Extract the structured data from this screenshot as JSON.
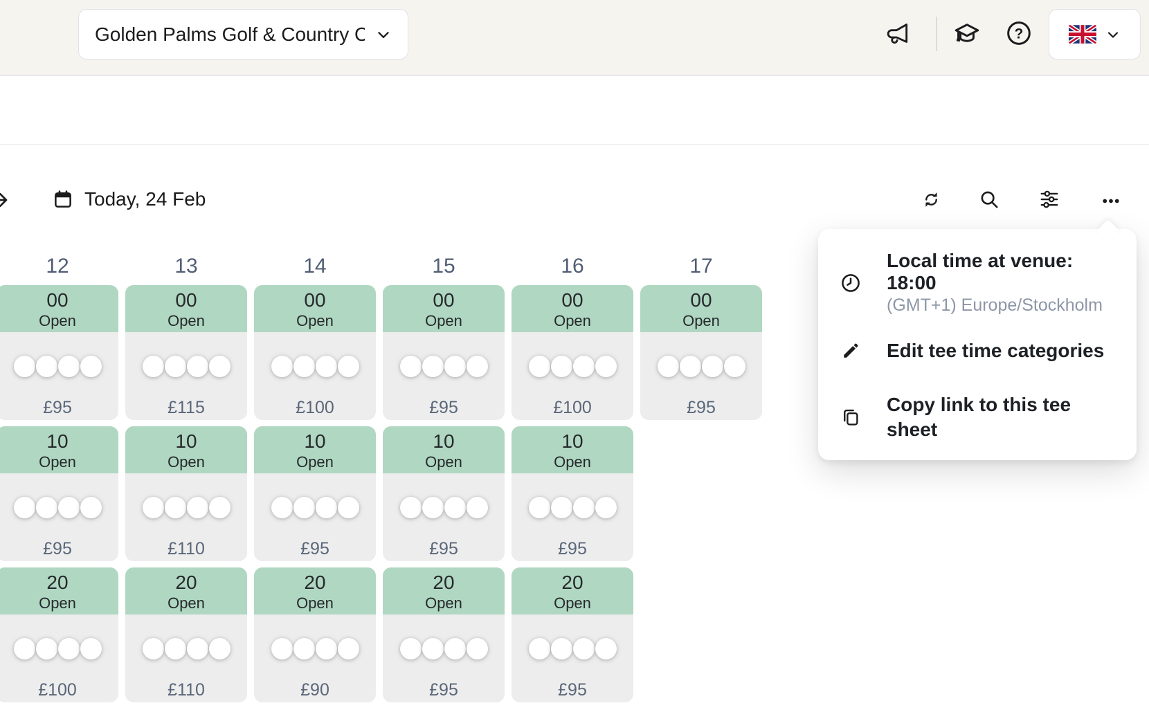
{
  "topbar": {
    "venue_selector": {
      "label": "Golden Palms Golf & Country Cl...",
      "chevron_icon": "chevron-down-icon"
    },
    "announcements_icon": "megaphone-icon",
    "academy_icon": "graduation-cap-icon",
    "help_icon": "question-circle-icon",
    "language_selector": {
      "flag_icon": "uk-flag-icon",
      "chevron_icon": "chevron-down-icon"
    }
  },
  "toolbar": {
    "expand_icon": "arrow-right-icon",
    "calendar_icon": "calendar-icon",
    "date_label": "Today, 24 Feb",
    "refresh_icon": "refresh-icon",
    "search_icon": "search-icon",
    "filters_icon": "sliders-icon",
    "more_icon": "ellipsis-icon"
  },
  "context_menu": {
    "local_time": {
      "icon": "clock-icon",
      "title": "Local time at venue: 18:00",
      "subtitle": "(GMT+1) Europe/Stockholm"
    },
    "items": [
      {
        "icon": "pencil-icon",
        "label": "Edit tee time categories"
      },
      {
        "icon": "copy-icon",
        "label": "Copy link to this tee sheet"
      }
    ]
  },
  "tee_sheet": {
    "player_slots_per_tee": 4,
    "columns": [
      {
        "hour": "12",
        "slots": [
          {
            "minute": "00",
            "status": "Open",
            "price": "£95"
          },
          {
            "minute": "10",
            "status": "Open",
            "price": "£95"
          },
          {
            "minute": "20",
            "status": "Open",
            "price": "£100"
          }
        ]
      },
      {
        "hour": "13",
        "slots": [
          {
            "minute": "00",
            "status": "Open",
            "price": "£115"
          },
          {
            "minute": "10",
            "status": "Open",
            "price": "£110"
          },
          {
            "minute": "20",
            "status": "Open",
            "price": "£110"
          }
        ]
      },
      {
        "hour": "14",
        "slots": [
          {
            "minute": "00",
            "status": "Open",
            "price": "£100"
          },
          {
            "minute": "10",
            "status": "Open",
            "price": "£95"
          },
          {
            "minute": "20",
            "status": "Open",
            "price": "£90"
          }
        ]
      },
      {
        "hour": "15",
        "slots": [
          {
            "minute": "00",
            "status": "Open",
            "price": "£95"
          },
          {
            "minute": "10",
            "status": "Open",
            "price": "£95"
          },
          {
            "minute": "20",
            "status": "Open",
            "price": "£95"
          }
        ]
      },
      {
        "hour": "16",
        "slots": [
          {
            "minute": "00",
            "status": "Open",
            "price": "£100"
          },
          {
            "minute": "10",
            "status": "Open",
            "price": "£95"
          },
          {
            "minute": "20",
            "status": "Open",
            "price": "£95"
          }
        ]
      },
      {
        "hour": "17",
        "slots": [
          {
            "minute": "00",
            "status": "Open",
            "price": "£95"
          }
        ]
      }
    ]
  },
  "colors": {
    "accent_green": "#b0d7c1",
    "cell_gray": "#ededee",
    "slate_text": "#5a6778",
    "topbar_bg": "#f6f4ef"
  }
}
